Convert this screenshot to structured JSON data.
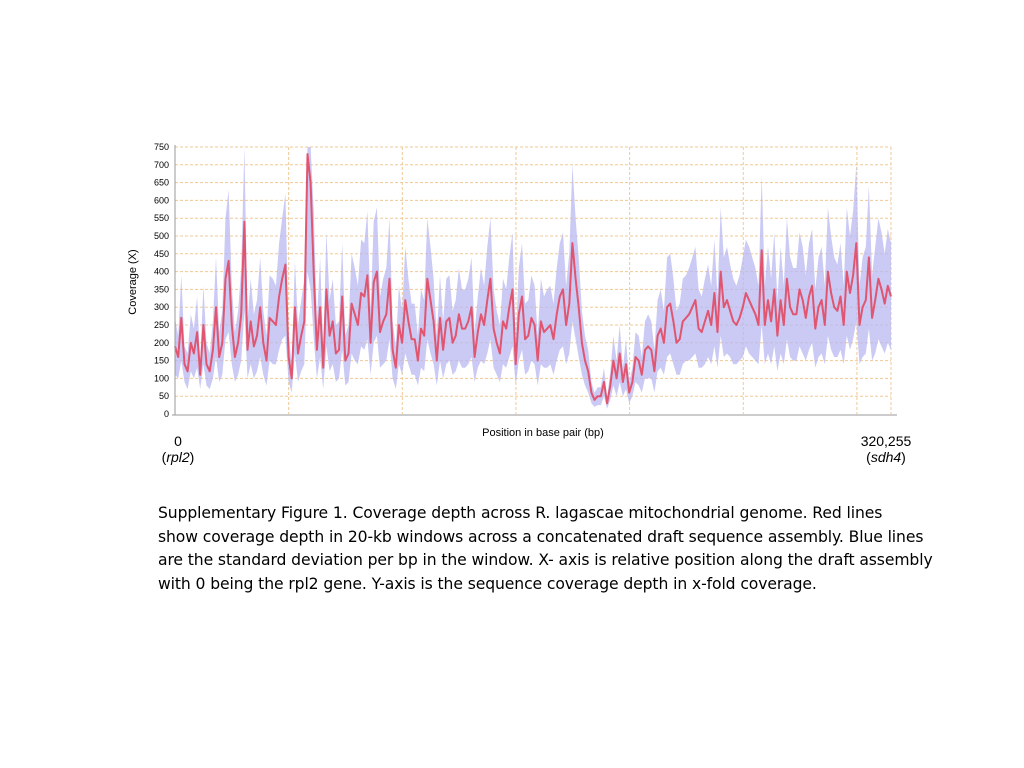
{
  "chart_data": {
    "type": "line",
    "ylabel": "Coverage (X)",
    "xlabel": "Position in base pair (bp)",
    "ylim": [
      0,
      750
    ],
    "yticks": [
      0,
      50,
      100,
      150,
      200,
      250,
      300,
      350,
      400,
      450,
      500,
      550,
      600,
      650,
      700,
      750
    ],
    "xlim": [
      0,
      320255
    ],
    "grid": true,
    "x_start": {
      "value": "0",
      "gene": "rpl2"
    },
    "x_end": {
      "value": "320,255",
      "gene": "sdh4"
    },
    "series": [
      {
        "color": "#e05570",
        "values": [
          190,
          160,
          270,
          140,
          120,
          200,
          170,
          230,
          110,
          250,
          140,
          120,
          180,
          300,
          160,
          200,
          380,
          430,
          250,
          160,
          200,
          280,
          540,
          180,
          260,
          190,
          220,
          300,
          200,
          150,
          270,
          260,
          250,
          330,
          380,
          420,
          160,
          100,
          300,
          170,
          220,
          260,
          730,
          650,
          390,
          180,
          300,
          130,
          350,
          220,
          260,
          170,
          180,
          330,
          150,
          170,
          310,
          280,
          250,
          340,
          330,
          390,
          200,
          370,
          400,
          230,
          260,
          280,
          380,
          180,
          130,
          250,
          200,
          320,
          260,
          210,
          210,
          150,
          240,
          220,
          380,
          320,
          260,
          150,
          270,
          180,
          260,
          270,
          200,
          220,
          280,
          240,
          240,
          260,
          300,
          160,
          230,
          280,
          250,
          320,
          380,
          240,
          200,
          170,
          260,
          240,
          300,
          350,
          140,
          280,
          330,
          210,
          220,
          270,
          250,
          150,
          260,
          230,
          240,
          250,
          210,
          280,
          330,
          350,
          250,
          310,
          480,
          380,
          300,
          200,
          150,
          120,
          60,
          40,
          50,
          50,
          90,
          30,
          80,
          150,
          100,
          170,
          90,
          140,
          60,
          90,
          160,
          150,
          110,
          180,
          190,
          180,
          120,
          220,
          240,
          200,
          300,
          310,
          260,
          200,
          210,
          260,
          270,
          280,
          300,
          320,
          240,
          230,
          260,
          290,
          250,
          340,
          230,
          400,
          300,
          320,
          290,
          260,
          250,
          270,
          300,
          340,
          320,
          300,
          280,
          250,
          460,
          250,
          320,
          260,
          350,
          220,
          320,
          250,
          380,
          300,
          280,
          280,
          350,
          320,
          270,
          330,
          360,
          240,
          300,
          320,
          250,
          400,
          340,
          300,
          290,
          330,
          250,
          400,
          340,
          390,
          480,
          250,
          300,
          320,
          440,
          270,
          320,
          380,
          350,
          310,
          360,
          330
        ]
      },
      {
        "color": "#b8b8f2",
        "values": [
          80,
          60,
          120,
          50,
          50,
          80,
          70,
          100,
          40,
          110,
          60,
          50,
          80,
          140,
          70,
          90,
          170,
          200,
          110,
          70,
          90,
          130,
          250,
          80,
          120,
          90,
          100,
          140,
          90,
          70,
          120,
          120,
          110,
          150,
          170,
          200,
          70,
          40,
          130,
          80,
          100,
          120,
          330,
          300,
          180,
          80,
          140,
          60,
          160,
          100,
          120,
          80,
          80,
          150,
          70,
          80,
          140,
          130,
          110,
          150,
          150,
          180,
          90,
          170,
          180,
          100,
          120,
          130,
          170,
          80,
          60,
          110,
          90,
          150,
          120,
          100,
          100,
          70,
          110,
          100,
          170,
          150,
          120,
          70,
          120,
          80,
          120,
          120,
          90,
          100,
          130,
          110,
          110,
          120,
          140,
          70,
          100,
          130,
          110,
          150,
          170,
          110,
          90,
          80,
          120,
          110,
          140,
          160,
          60,
          130,
          150,
          100,
          100,
          120,
          110,
          70,
          120,
          100,
          110,
          110,
          100,
          130,
          150,
          160,
          110,
          140,
          220,
          170,
          140,
          90,
          70,
          60,
          30,
          20,
          25,
          25,
          40,
          15,
          40,
          70,
          50,
          80,
          40,
          70,
          30,
          40,
          70,
          70,
          50,
          80,
          90,
          80,
          60,
          100,
          110,
          90,
          140,
          140,
          120,
          90,
          100,
          120,
          120,
          130,
          140,
          150,
          110,
          100,
          120,
          130,
          110,
          150,
          100,
          180,
          140,
          150,
          130,
          120,
          110,
          120,
          140,
          150,
          150,
          140,
          130,
          110,
          210,
          110,
          150,
          120,
          160,
          100,
          150,
          110,
          170,
          140,
          130,
          130,
          160,
          150,
          120,
          150,
          160,
          110,
          140,
          150,
          110,
          180,
          160,
          140,
          130,
          150,
          110,
          180,
          160,
          180,
          220,
          110,
          140,
          150,
          200,
          120,
          150,
          170,
          160,
          140,
          160,
          150
        ]
      }
    ]
  },
  "caption": {
    "lines": [
      "Supplementary Figure 1. Coverage depth across R. lagascae mitochondrial genome.  Red lines",
      "show coverage depth in 20-kb windows across a concatenated draft sequence assembly.  Blue lines",
      "are the standard deviation per bp in the window. X- axis is relative position along the draft assembly",
      "with 0 being the rpl2 gene. Y-axis is the sequence coverage depth in x-fold coverage."
    ]
  }
}
